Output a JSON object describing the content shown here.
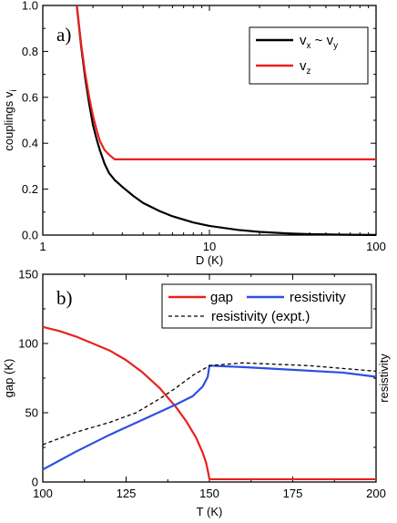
{
  "chart_data": [
    {
      "type": "line",
      "panel_label": "a)",
      "xlabel": "D (K)",
      "ylabel": "couplings v",
      "ylabel_sub": "i",
      "xscale": "log",
      "xlim": [
        1,
        100
      ],
      "ylim": [
        0.0,
        1.0
      ],
      "xticks": [
        1,
        10,
        100
      ],
      "xtick_labels": [
        "1",
        "10",
        "100"
      ],
      "yticks": [
        0.0,
        0.2,
        0.4,
        0.6,
        0.8,
        1.0
      ],
      "ytick_labels": [
        "0.0",
        "0.2",
        "0.4",
        "0.6",
        "0.8",
        "1.0"
      ],
      "legend_position": "top-right",
      "series": [
        {
          "name": "v",
          "legend_sub1": "x",
          "legend_mid": " ~ v",
          "legend_sub2": "y",
          "color": "#000000",
          "style": "solid",
          "x": [
            1.6,
            1.7,
            1.8,
            1.9,
            2.0,
            2.1,
            2.2,
            2.35,
            2.5,
            2.7,
            3.0,
            3.5,
            4.0,
            5.0,
            6.0,
            8.0,
            10,
            15,
            20,
            30,
            40,
            60,
            80,
            100
          ],
          "y": [
            1.0,
            0.82,
            0.68,
            0.57,
            0.48,
            0.42,
            0.37,
            0.31,
            0.27,
            0.24,
            0.21,
            0.17,
            0.14,
            0.105,
            0.082,
            0.055,
            0.04,
            0.022,
            0.014,
            0.007,
            0.004,
            0.002,
            0.001,
            0.0005
          ]
        },
        {
          "name": "v",
          "legend_sub1": "z",
          "color": "#e8221c",
          "style": "solid",
          "x": [
            1.6,
            1.7,
            1.8,
            1.9,
            2.0,
            2.1,
            2.2,
            2.35,
            2.5,
            2.7,
            5.0,
            10,
            30,
            100
          ],
          "y": [
            1.0,
            0.83,
            0.7,
            0.6,
            0.52,
            0.46,
            0.41,
            0.37,
            0.35,
            0.33,
            0.33,
            0.33,
            0.33,
            0.33
          ]
        }
      ]
    },
    {
      "type": "line",
      "panel_label": "b)",
      "xlabel": "T (K)",
      "ylabel": "gap (K)",
      "ylabel_right": "resistivity",
      "xlim": [
        100,
        200
      ],
      "ylim": [
        0,
        150
      ],
      "xticks": [
        100,
        125,
        150,
        175,
        200
      ],
      "xtick_labels": [
        "100",
        "125",
        "150",
        "175",
        "200"
      ],
      "yticks": [
        0,
        50,
        100,
        150
      ],
      "ytick_labels": [
        "0",
        "50",
        "100",
        "150"
      ],
      "legend_position": "top-right",
      "series": [
        {
          "name": "gap",
          "color": "#e8221c",
          "style": "solid",
          "x": [
            100,
            105,
            110,
            115,
            120,
            125,
            130,
            135,
            140,
            143,
            146,
            148,
            149,
            149.7,
            150,
            160,
            175,
            200
          ],
          "y": [
            112,
            109,
            105,
            100,
            95,
            88,
            79,
            68,
            54,
            44,
            32,
            21,
            14,
            6,
            2,
            2,
            2,
            2
          ]
        },
        {
          "name": "resistivity",
          "color": "#2d4fe0",
          "style": "solid",
          "x": [
            100,
            110,
            120,
            130,
            140,
            145,
            148,
            149.5,
            150,
            160,
            175,
            190,
            200
          ],
          "y": [
            9,
            22,
            34,
            45,
            56,
            62,
            69,
            76,
            84,
            83,
            81,
            79,
            76
          ]
        },
        {
          "name": "resistivity (expt.)",
          "color": "#000000",
          "style": "dashed",
          "x": [
            100,
            110,
            120,
            128,
            135,
            140,
            145,
            150,
            155,
            160,
            170,
            180,
            190,
            200
          ],
          "y": [
            27,
            36,
            43,
            50,
            60,
            68,
            77,
            84,
            85,
            86,
            85,
            84,
            82,
            80
          ]
        }
      ]
    }
  ]
}
